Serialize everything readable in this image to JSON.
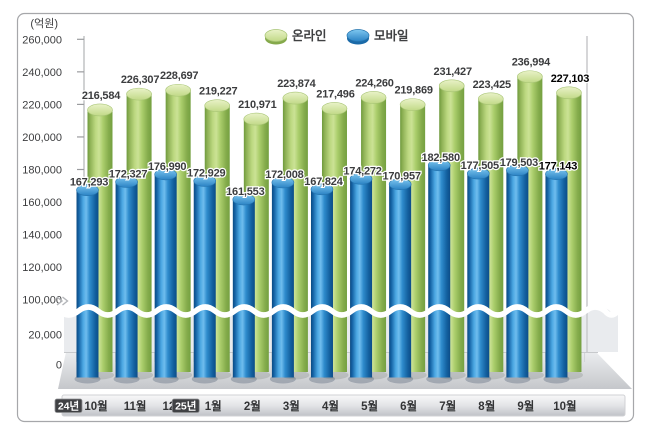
{
  "frame": {
    "background": "#ffffff",
    "border_color": "#a6a7aa"
  },
  "chart_data": {
    "type": "bar",
    "ylabel": "(억원)",
    "categories": [
      "10월",
      "11월",
      "12월",
      "1월",
      "2월",
      "3월",
      "4월",
      "5월",
      "6월",
      "7월",
      "8월",
      "9월",
      "10월"
    ],
    "year_markers": [
      {
        "index": 0,
        "label": "24년"
      },
      {
        "index": 3,
        "label": "25년"
      }
    ],
    "series": [
      {
        "name": "온라인",
        "color": "#9cc45f",
        "values": [
          216584,
          226307,
          228697,
          219227,
          210971,
          223874,
          217496,
          224260,
          219869,
          231427,
          223425,
          236994,
          227103
        ]
      },
      {
        "name": "모바일",
        "color": "#2e8ed2",
        "values": [
          167293,
          172327,
          176990,
          172929,
          161553,
          172008,
          167824,
          174272,
          170957,
          182580,
          177505,
          179503,
          177143
        ]
      }
    ],
    "yticks": [
      260000,
      240000,
      220000,
      200000,
      180000,
      160000,
      140000,
      120000,
      100000,
      20000,
      0
    ],
    "ylim": [
      0,
      260000
    ],
    "axis_break": {
      "between": [
        20000,
        100000
      ]
    },
    "last_column_bold": true,
    "legend_position": "top-center",
    "grid": false
  }
}
